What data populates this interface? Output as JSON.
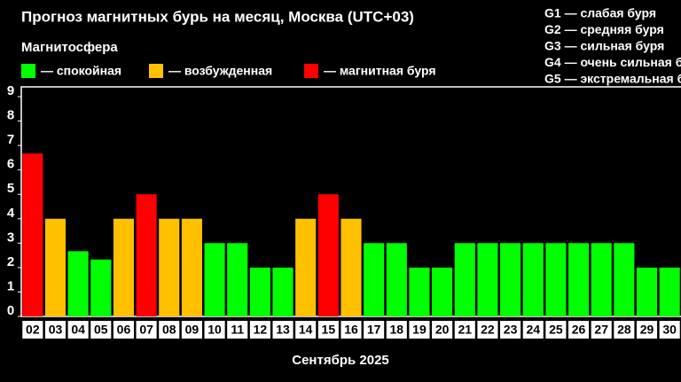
{
  "chart_data": {
    "type": "bar",
    "title": "Прогноз магнитных бурь на месяц, Москва (UTC+03)",
    "subtitle": "Магнитосфера",
    "legend": [
      {
        "label": "— спокойная",
        "color": "#00ff00"
      },
      {
        "label": "— возбужденная",
        "color": "#ffc000"
      },
      {
        "label": "— магнитная буря",
        "color": "#ff0000"
      }
    ],
    "scale_notes": [
      "G1 — слабая буря",
      "G2 — средняя буря",
      "G3 — сильная буря",
      "G4 — очень сильная б",
      "G5 — экстремальная б"
    ],
    "x_label": "Сентябрь 2025",
    "categories": [
      "02",
      "03",
      "04",
      "05",
      "06",
      "07",
      "08",
      "09",
      "10",
      "11",
      "12",
      "13",
      "14",
      "15",
      "16",
      "17",
      "18",
      "19",
      "20",
      "21",
      "22",
      "23",
      "24",
      "25",
      "26",
      "27",
      "28",
      "29",
      "30"
    ],
    "values": [
      6.67,
      4,
      2.67,
      2.33,
      4,
      5,
      4,
      4,
      3,
      3,
      2,
      2,
      4,
      5,
      4,
      3,
      3,
      2,
      2,
      3,
      3,
      3,
      3,
      3,
      3,
      3,
      3,
      2,
      2
    ],
    "colors": [
      "#ff0000",
      "#ffc000",
      "#00ff00",
      "#00ff00",
      "#ffc000",
      "#ff0000",
      "#ffc000",
      "#ffc000",
      "#00ff00",
      "#00ff00",
      "#00ff00",
      "#00ff00",
      "#ffc000",
      "#ff0000",
      "#ffc000",
      "#00ff00",
      "#00ff00",
      "#00ff00",
      "#00ff00",
      "#00ff00",
      "#00ff00",
      "#00ff00",
      "#00ff00",
      "#00ff00",
      "#00ff00",
      "#00ff00",
      "#00ff00",
      "#00ff00",
      "#00ff00"
    ],
    "ylim": [
      0,
      9.4
    ],
    "yticks": [
      0,
      1,
      2,
      3,
      4,
      5,
      6,
      7,
      8,
      9
    ]
  }
}
